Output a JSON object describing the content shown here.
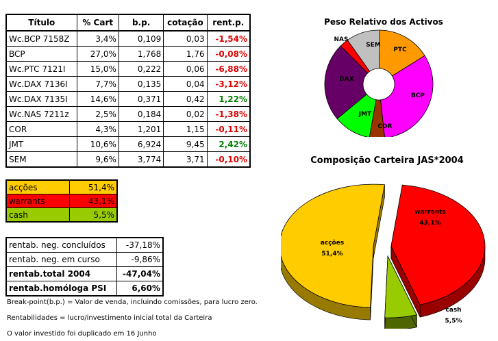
{
  "holdings": {
    "headers": [
      "Título",
      "% Cart",
      "b.p.",
      "cotação",
      "rent.p."
    ],
    "rows": [
      {
        "titulo": "Wc.BCP 7158Z",
        "cart": "3,4%",
        "bp": "0,109",
        "cotacao": "0,03",
        "rent": "-1,54%",
        "sign": "neg"
      },
      {
        "titulo": "BCP",
        "cart": "27,0%",
        "bp": "1,768",
        "cotacao": "1,76",
        "rent": "-0,08%",
        "sign": "neg"
      },
      {
        "titulo": "Wc.PTC 7121I",
        "cart": "15,0%",
        "bp": "0,222",
        "cotacao": "0,06",
        "rent": "-6,88%",
        "sign": "neg"
      },
      {
        "titulo": "Wc.DAX 7136I",
        "cart": "7,7%",
        "bp": "0,135",
        "cotacao": "0,04",
        "rent": "-3,12%",
        "sign": "neg"
      },
      {
        "titulo": "Wc.DAX 7135I",
        "cart": "14,6%",
        "bp": "0,371",
        "cotacao": "0,42",
        "rent": "1,22%",
        "sign": "pos"
      },
      {
        "titulo": "Wc.NAS 7211z",
        "cart": "2,5%",
        "bp": "0,184",
        "cotacao": "0,02",
        "rent": "-1,38%",
        "sign": "neg"
      },
      {
        "titulo": "COR",
        "cart": "4,3%",
        "bp": "1,201",
        "cotacao": "1,15",
        "rent": "-0,11%",
        "sign": "neg"
      },
      {
        "titulo": "JMT",
        "cart": "10,6%",
        "bp": "6,924",
        "cotacao": "9,45",
        "rent": "2,42%",
        "sign": "pos"
      },
      {
        "titulo": "SEM",
        "cart": "9,6%",
        "bp": "3,774",
        "cotacao": "3,71",
        "rent": "-0,10%",
        "sign": "neg"
      }
    ]
  },
  "allocation": [
    {
      "label": "acções",
      "value": "51,4%",
      "color": "#ffcc00"
    },
    {
      "label": "warrants",
      "value": "43,1%",
      "color": "#ff0000"
    },
    {
      "label": "cash",
      "value": "5,5%",
      "color": "#99cc00"
    }
  ],
  "stats": [
    {
      "label": "rentab. neg. concluídos",
      "value": "-37,18%",
      "bold": false
    },
    {
      "label": "rentab. neg. em curso",
      "value": "-9,86%",
      "bold": false
    },
    {
      "label": "rentab.total 2004",
      "value": "-47,04%",
      "bold": true
    },
    {
      "label": "rentab.homóloga PSI",
      "value": "6,60%",
      "bold": true
    }
  ],
  "notes": [
    "Break-point(b.p.) = Valor de venda, incluindo comissões, para lucro zero.",
    "Rentabilidades = lucro/investimento inicial total da Carteira",
    "O valor investido foi duplicado em 16 Junho"
  ],
  "chart_data": [
    {
      "type": "pie",
      "title": "Peso Relativo dos Activos",
      "categories": [
        "PTC",
        "BCP",
        "COR",
        "JMT",
        "DAX",
        "NAS",
        "SEM"
      ],
      "values": [
        15.0,
        30.4,
        4.3,
        10.6,
        22.3,
        2.5,
        9.6
      ],
      "colors": [
        "#ff9900",
        "#ff00ff",
        "#993300",
        "#00ff00",
        "#660066",
        "#ff0000",
        "#c0c0c0"
      ],
      "donut": true
    },
    {
      "type": "pie",
      "title": "Composição Carteira JAS*2004",
      "categories": [
        "warrants",
        "cash",
        "acções"
      ],
      "labels": [
        "warrants\n43,1%",
        "cash\n5,5%",
        "acções\n51,4%"
      ],
      "values": [
        43.1,
        5.5,
        51.4
      ],
      "colors": [
        "#ff0000",
        "#99cc00",
        "#ffcc00"
      ],
      "side_colors": [
        "#990000",
        "#4d6600",
        "#997a00"
      ],
      "style": "3d-exploded"
    }
  ]
}
